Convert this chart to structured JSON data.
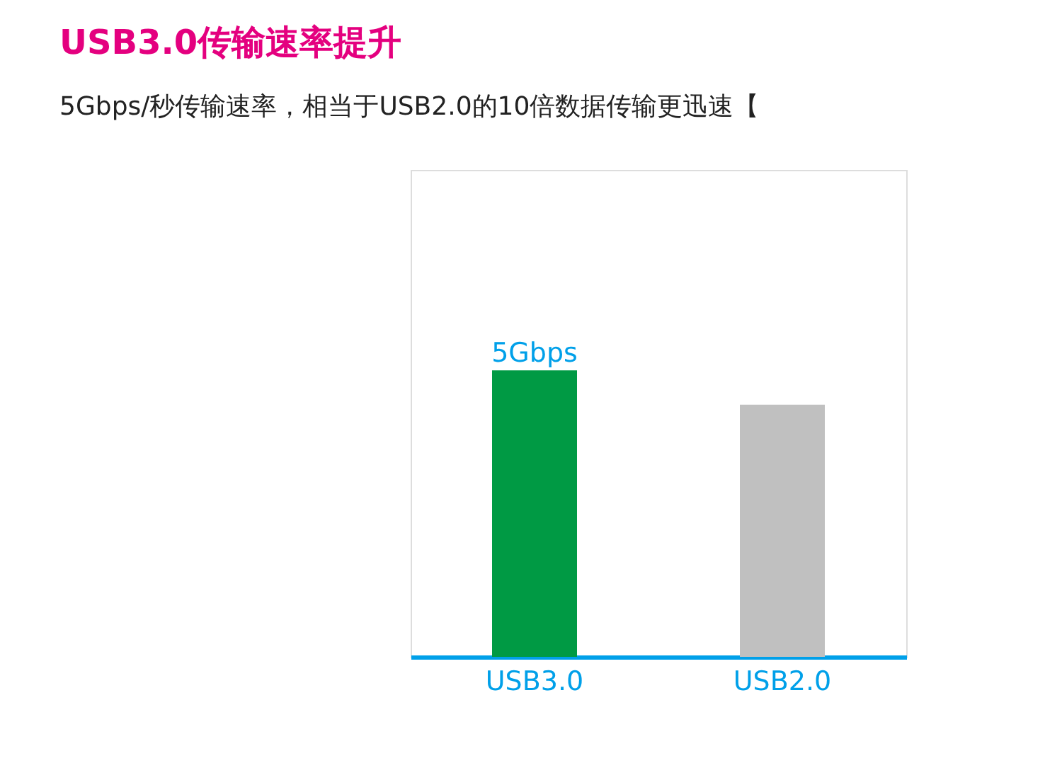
{
  "chart_data": {
    "type": "bar",
    "title": "USB3.0传输速率提升",
    "subtitle": "5Gbps/秒传输速率，相当于USB2.0的10倍数据传输更迅速【",
    "categories": [
      "USB3.0",
      "USB2.0"
    ],
    "values": [
      5,
      4.4
    ],
    "colors": [
      "#009a44",
      "#c0c0c0"
    ],
    "value_labels": [
      "5Gbps",
      null
    ],
    "tick_labels": "x"
  }
}
